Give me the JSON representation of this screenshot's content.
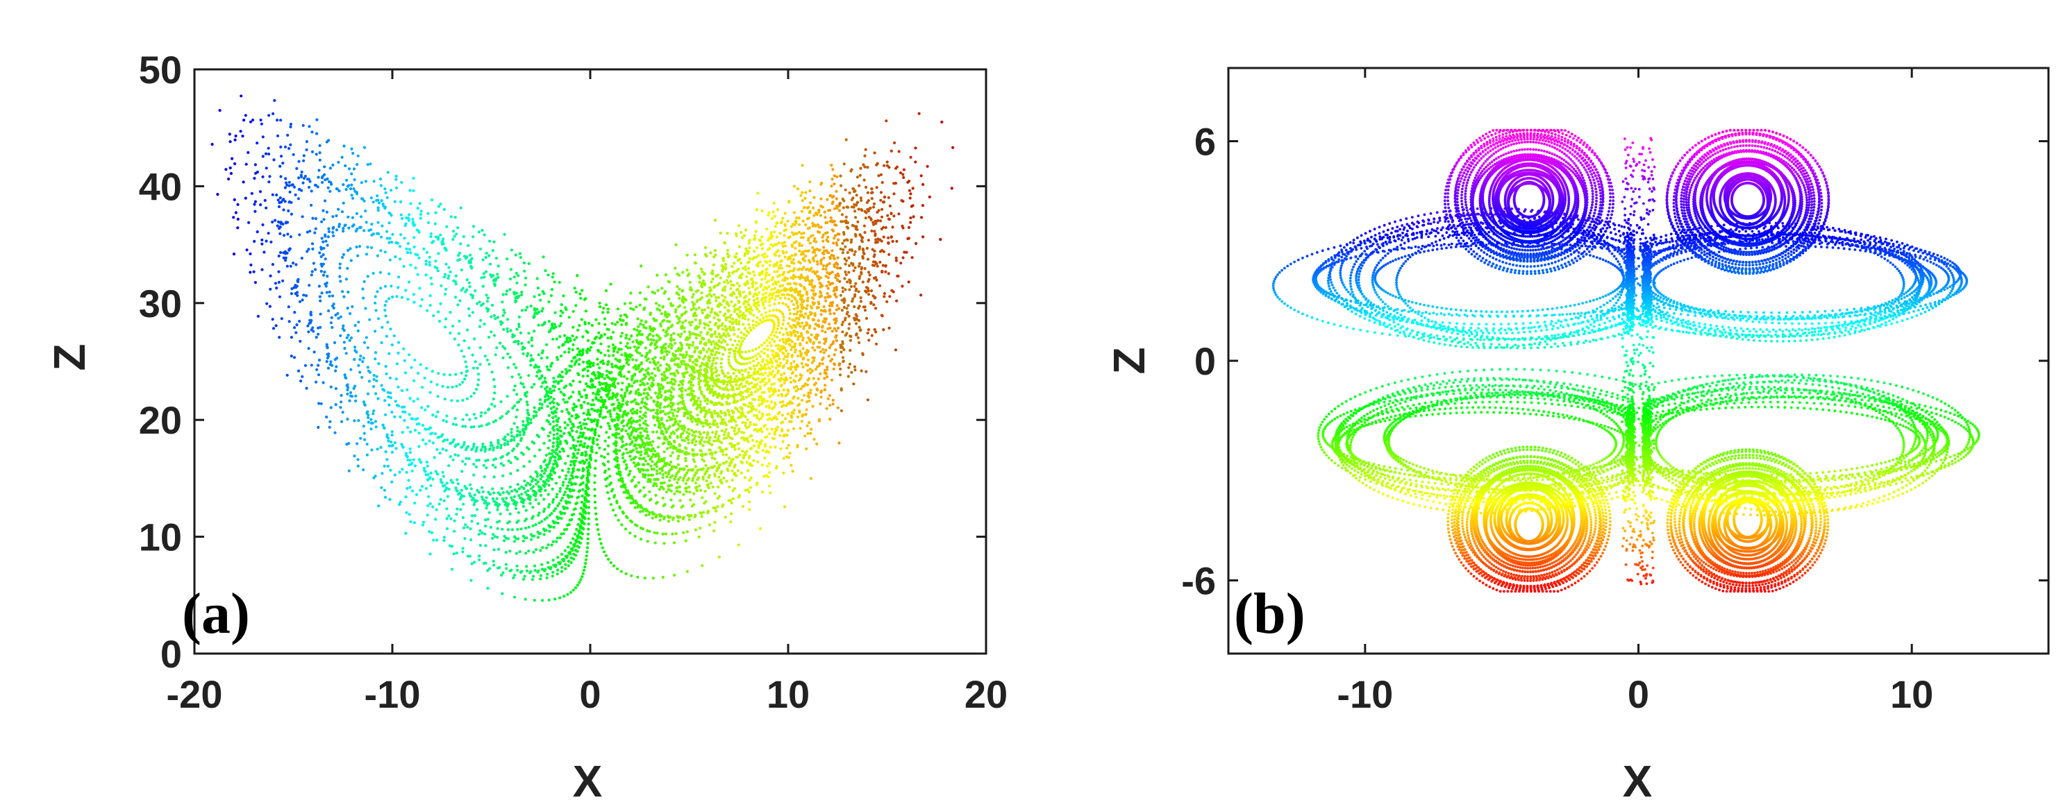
{
  "chart_data": [
    {
      "type": "scatter",
      "panel_label": "(a)",
      "xlabel": "X",
      "ylabel": "Z",
      "xlim": [
        -20,
        20
      ],
      "ylim": [
        0,
        50
      ],
      "xticks": [
        -20,
        -10,
        0,
        10,
        20
      ],
      "yticks": [
        0,
        10,
        20,
        30,
        40,
        50
      ],
      "xtick_labels": [
        "-20",
        "-10",
        "0",
        "10",
        "20"
      ],
      "ytick_labels": [
        "0",
        "10",
        "20",
        "30",
        "40",
        "50"
      ],
      "grid": false,
      "legend": "none",
      "colormap": "rainbow by X (blue to red)",
      "series": [
        {
          "points_sample": [
            [
              -17.5,
              46.5
            ],
            [
              -19,
              40
            ],
            [
              -15,
              42
            ],
            [
              -10,
              38
            ],
            [
              -6,
              33
            ],
            [
              -12,
              20
            ],
            [
              -8,
              14
            ],
            [
              -3,
              5
            ],
            [
              0,
              10
            ],
            [
              2,
              4
            ],
            [
              5,
              20
            ],
            [
              8,
              33
            ],
            [
              12,
              42
            ],
            [
              15,
              44
            ],
            [
              17.5,
              42
            ],
            [
              16,
              28
            ],
            [
              10,
              20
            ],
            [
              5,
              12
            ]
          ]
        }
      ]
    },
    {
      "type": "scatter",
      "panel_label": "(b)",
      "xlabel": "X",
      "ylabel": "Z",
      "xlim": [
        -15,
        15
      ],
      "ylim": [
        -8,
        8
      ],
      "xticks": [
        -10,
        0,
        10
      ],
      "yticks": [
        -6,
        0,
        6
      ],
      "xtick_labels": [
        "-10",
        "0",
        "10"
      ],
      "ytick_labels": [
        "-6",
        "0",
        "6"
      ],
      "grid": false,
      "legend": "none",
      "colormap": "hsv by Z (red bottom to magenta top)",
      "series": [
        {
          "points_sample": [
            [
              -6.5,
              6.3
            ],
            [
              -1.5,
              6.2
            ],
            [
              1.5,
              6.3
            ],
            [
              6.5,
              6.1
            ],
            [
              -11,
              2.2
            ],
            [
              11,
              2.2
            ],
            [
              -11,
              -2.2
            ],
            [
              11,
              -2.2
            ],
            [
              -6,
              -6
            ],
            [
              -2,
              -6.2
            ],
            [
              2,
              -6
            ],
            [
              6,
              -6
            ],
            [
              -4,
              4.6
            ],
            [
              4,
              4.6
            ],
            [
              -4,
              -4.6
            ],
            [
              4,
              -4.6
            ]
          ]
        }
      ]
    }
  ]
}
